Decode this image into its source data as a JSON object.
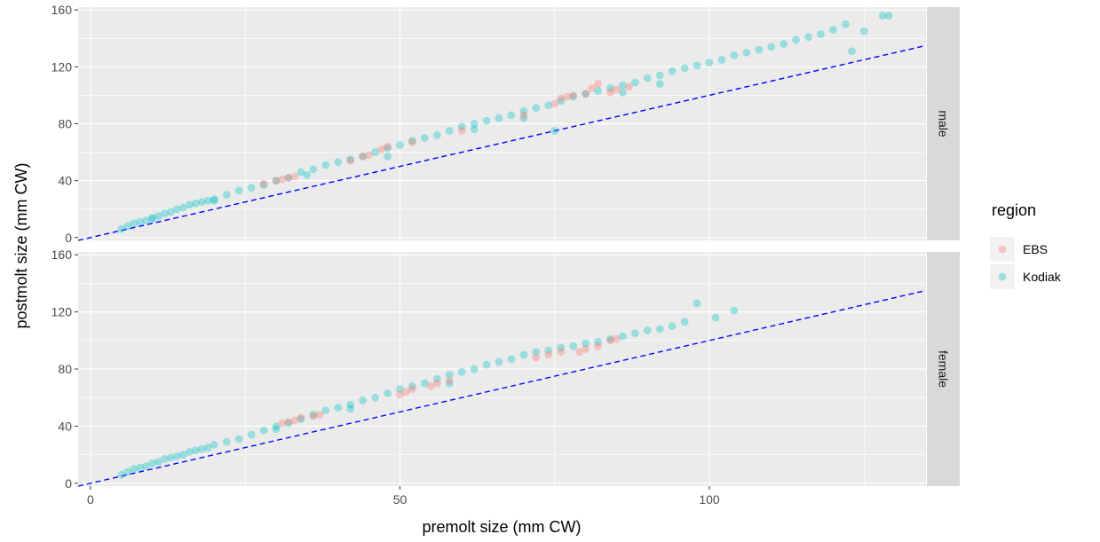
{
  "chart_data": {
    "type": "scatter",
    "xlabel": "premolt size (mm CW)",
    "ylabel": "postmolt size (mm CW)",
    "xlim": [
      -2,
      135
    ],
    "ylim": [
      -2,
      162
    ],
    "x_ticks": [
      0,
      50,
      100
    ],
    "y_ticks": [
      0,
      40,
      80,
      120,
      160
    ],
    "grid": true,
    "legend": {
      "title": "region",
      "position": "right",
      "entries": [
        {
          "name": "EBS",
          "color": "#F8766D"
        },
        {
          "name": "Kodiak",
          "color": "#00BFC4"
        }
      ]
    },
    "reference_line": {
      "style": "dashed",
      "color": "#0000FF",
      "slope": 1,
      "intercept": 0
    },
    "facets": [
      {
        "label": "male",
        "series": [
          {
            "name": "Kodiak",
            "color": "#00BFC4",
            "points": [
              [
                5,
                6
              ],
              [
                6,
                8
              ],
              [
                7,
                10
              ],
              [
                8,
                11
              ],
              [
                9,
                12
              ],
              [
                10,
                14
              ],
              [
                11,
                15
              ],
              [
                12,
                17
              ],
              [
                13,
                18
              ],
              [
                14,
                20
              ],
              [
                15,
                21
              ],
              [
                16,
                23
              ],
              [
                17,
                24
              ],
              [
                18,
                25
              ],
              [
                19,
                26
              ],
              [
                20,
                27
              ],
              [
                22,
                30
              ],
              [
                24,
                33
              ],
              [
                26,
                35
              ],
              [
                28,
                37
              ],
              [
                30,
                40
              ],
              [
                32,
                42
              ],
              [
                34,
                46
              ],
              [
                36,
                48
              ],
              [
                38,
                51
              ],
              [
                40,
                53
              ],
              [
                42,
                55
              ],
              [
                44,
                57
              ],
              [
                46,
                60
              ],
              [
                48,
                63
              ],
              [
                50,
                65
              ],
              [
                52,
                68
              ],
              [
                54,
                70
              ],
              [
                56,
                72
              ],
              [
                58,
                75
              ],
              [
                60,
                78
              ],
              [
                62,
                80
              ],
              [
                64,
                82
              ],
              [
                66,
                84
              ],
              [
                68,
                86
              ],
              [
                70,
                89
              ],
              [
                72,
                91
              ],
              [
                74,
                93
              ],
              [
                76,
                96
              ],
              [
                78,
                99
              ],
              [
                80,
                101
              ],
              [
                82,
                103
              ],
              [
                84,
                105
              ],
              [
                86,
                107
              ],
              [
                88,
                109
              ],
              [
                90,
                112
              ],
              [
                92,
                114
              ],
              [
                94,
                117
              ],
              [
                96,
                119
              ],
              [
                98,
                121
              ],
              [
                100,
                123
              ],
              [
                102,
                125
              ],
              [
                104,
                128
              ],
              [
                106,
                130
              ],
              [
                108,
                132
              ],
              [
                110,
                134
              ],
              [
                112,
                136
              ],
              [
                114,
                139
              ],
              [
                116,
                141
              ],
              [
                118,
                143
              ],
              [
                120,
                146
              ],
              [
                122,
                150
              ],
              [
                125,
                145
              ],
              [
                128,
                156
              ],
              [
                129,
                156
              ],
              [
                123,
                131
              ],
              [
                75,
                75
              ],
              [
                62,
                76
              ],
              [
                48,
                57
              ],
              [
                35,
                44
              ],
              [
                20,
                26
              ],
              [
                10,
                13
              ],
              [
                86,
                102
              ],
              [
                92,
                108
              ],
              [
                70,
                84
              ]
            ]
          },
          {
            "name": "EBS",
            "color": "#F8766D",
            "points": [
              [
                28,
                38
              ],
              [
                30,
                40
              ],
              [
                31,
                41
              ],
              [
                32,
                42
              ],
              [
                33,
                43
              ],
              [
                42,
                54
              ],
              [
                44,
                57
              ],
              [
                45,
                58
              ],
              [
                47,
                62
              ],
              [
                48,
                64
              ],
              [
                52,
                67
              ],
              [
                60,
                75
              ],
              [
                70,
                86
              ],
              [
                75,
                94
              ],
              [
                76,
                98
              ],
              [
                77,
                99
              ],
              [
                78,
                100
              ],
              [
                80,
                101
              ],
              [
                81,
                105
              ],
              [
                82,
                108
              ],
              [
                84,
                102
              ],
              [
                85,
                104
              ],
              [
                87,
                106
              ]
            ]
          }
        ]
      },
      {
        "label": "female",
        "series": [
          {
            "name": "Kodiak",
            "color": "#00BFC4",
            "points": [
              [
                5,
                6
              ],
              [
                6,
                8
              ],
              [
                7,
                10
              ],
              [
                8,
                11
              ],
              [
                9,
                12
              ],
              [
                10,
                14
              ],
              [
                11,
                15
              ],
              [
                12,
                17
              ],
              [
                13,
                18
              ],
              [
                14,
                19
              ],
              [
                15,
                20
              ],
              [
                16,
                22
              ],
              [
                17,
                23
              ],
              [
                18,
                24
              ],
              [
                19,
                25
              ],
              [
                20,
                27
              ],
              [
                22,
                29
              ],
              [
                24,
                31
              ],
              [
                26,
                34
              ],
              [
                28,
                37
              ],
              [
                30,
                40
              ],
              [
                32,
                42
              ],
              [
                34,
                45
              ],
              [
                36,
                48
              ],
              [
                38,
                51
              ],
              [
                40,
                53
              ],
              [
                42,
                55
              ],
              [
                44,
                58
              ],
              [
                46,
                60
              ],
              [
                48,
                63
              ],
              [
                50,
                66
              ],
              [
                52,
                68
              ],
              [
                54,
                70
              ],
              [
                56,
                73
              ],
              [
                58,
                76
              ],
              [
                60,
                78
              ],
              [
                62,
                80
              ],
              [
                64,
                83
              ],
              [
                66,
                85
              ],
              [
                68,
                87
              ],
              [
                70,
                90
              ],
              [
                72,
                92
              ],
              [
                74,
                93
              ],
              [
                76,
                95
              ],
              [
                78,
                96
              ],
              [
                80,
                98
              ],
              [
                82,
                99
              ],
              [
                84,
                101
              ],
              [
                86,
                103
              ],
              [
                88,
                105
              ],
              [
                90,
                107
              ],
              [
                92,
                108
              ],
              [
                94,
                110
              ],
              [
                96,
                113
              ],
              [
                98,
                126
              ],
              [
                101,
                116
              ],
              [
                104,
                121
              ],
              [
                58,
                70
              ],
              [
                42,
                52
              ],
              [
                30,
                38
              ]
            ]
          },
          {
            "name": "EBS",
            "color": "#F8766D",
            "points": [
              [
                31,
                42
              ],
              [
                32,
                43
              ],
              [
                33,
                44
              ],
              [
                34,
                46
              ],
              [
                36,
                47
              ],
              [
                37,
                48
              ],
              [
                50,
                62
              ],
              [
                51,
                64
              ],
              [
                52,
                66
              ],
              [
                55,
                68
              ],
              [
                56,
                70
              ],
              [
                58,
                72
              ],
              [
                72,
                88
              ],
              [
                74,
                90
              ],
              [
                76,
                92
              ],
              [
                79,
                92
              ],
              [
                80,
                94
              ],
              [
                82,
                96
              ],
              [
                84,
                100
              ],
              [
                85,
                101
              ]
            ]
          }
        ]
      }
    ]
  }
}
